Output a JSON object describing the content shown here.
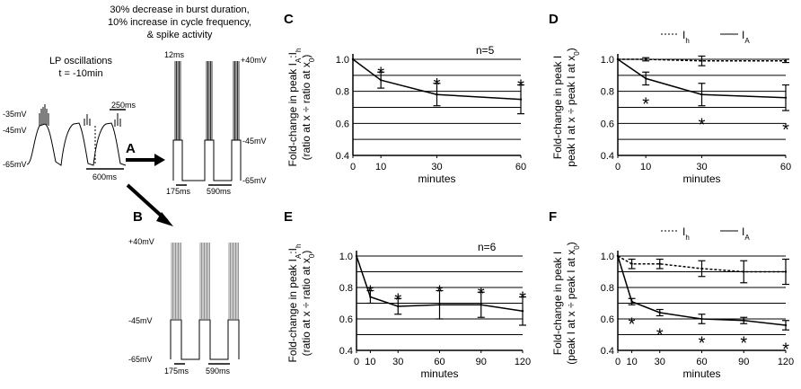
{
  "left": {
    "caption": [
      "30% decrease in burst duration,",
      "10% increase in cycle frequency,",
      "& spike activity"
    ],
    "lp_title": [
      "LP oscillations",
      "t = -10min"
    ],
    "lp_voltages": [
      "-35mV",
      "-45mV",
      "-65mV"
    ],
    "lp_scale": [
      "250ms",
      "600ms"
    ],
    "a_label": "A",
    "b_label": "B",
    "a_voltages": [
      "+40mV",
      "-45mV",
      "-65mV"
    ],
    "a_times": [
      "12ms",
      "175ms",
      "590ms"
    ],
    "b_voltages": [
      "+40mV",
      "-45mV",
      "-65mV"
    ],
    "b_times": [
      "175ms",
      "590ms"
    ]
  },
  "legend": {
    "ih": "I",
    "ih_sub": "h",
    "ia": "I",
    "ia_sub": "A"
  },
  "stars": "*",
  "chart_data": [
    {
      "panel": "C",
      "type": "line",
      "note": "n=5",
      "ylabel1": "Fold-change in peak I",
      "ylabel1_sub": "A",
      "ylabel1_mid": ":I",
      "ylabel1_sub2": "h",
      "ylabel2": "(ratio at x ÷ ratio at x",
      "ylabel2_sub": "0",
      "ylabel2_end": ")",
      "xlabel": "minutes",
      "x": [
        0,
        10,
        30,
        60
      ],
      "xticks": [
        "0",
        "10",
        "30",
        "60"
      ],
      "xlim": [
        0,
        60
      ],
      "ylim": [
        0.4,
        1.0
      ],
      "yticks": [
        "0.4",
        "0.6",
        "0.8",
        "1.0"
      ],
      "series": [
        {
          "name": "IA:Ih",
          "style": "solid",
          "values": [
            1.0,
            0.87,
            0.78,
            0.75
          ],
          "err": [
            0,
            0.05,
            0.07,
            0.09
          ],
          "stars": [
            false,
            true,
            true,
            true
          ],
          "star_pos": "above"
        }
      ]
    },
    {
      "panel": "D",
      "type": "line",
      "ylabel1": "Fold-change in peak I",
      "ylabel2": "peak I at x ÷ peak I at x",
      "ylabel2_sub": "0",
      "ylabel2_end": ")",
      "xlabel": "minutes",
      "x": [
        0,
        10,
        30,
        60
      ],
      "xticks": [
        "0",
        "10",
        "30",
        "60"
      ],
      "xlim": [
        0,
        60
      ],
      "ylim": [
        0.4,
        1.0
      ],
      "yticks": [
        "0.4",
        "0.6",
        "0.8",
        "1.0"
      ],
      "series": [
        {
          "name": "Ih",
          "style": "dashed",
          "values": [
            1.0,
            1.0,
            0.99,
            0.99
          ],
          "err": [
            0,
            0.01,
            0.03,
            0.01
          ],
          "stars": [
            false,
            false,
            false,
            false
          ],
          "star_pos": "below"
        },
        {
          "name": "IA",
          "style": "solid",
          "values": [
            1.0,
            0.88,
            0.78,
            0.76
          ],
          "err": [
            0,
            0.04,
            0.07,
            0.08
          ],
          "stars": [
            false,
            true,
            true,
            true
          ],
          "star_pos": "below"
        }
      ]
    },
    {
      "panel": "E",
      "type": "line",
      "note": "n=6",
      "ylabel1": "Fold-change in peak I",
      "ylabel1_sub": "A",
      "ylabel1_mid": ":I",
      "ylabel1_sub2": "h",
      "ylabel2": "(ratio at x ÷ ratio at x",
      "ylabel2_sub": "0",
      "ylabel2_end": ")",
      "xlabel": "minutes",
      "x": [
        0,
        10,
        30,
        60,
        90,
        120
      ],
      "xticks": [
        "0",
        "10",
        "30",
        "60",
        "90",
        "120"
      ],
      "xlim": [
        0,
        120
      ],
      "ylim": [
        0.4,
        1.0
      ],
      "yticks": [
        "0.4",
        "0.6",
        "0.8",
        "1.0"
      ],
      "series": [
        {
          "name": "IA:Ih",
          "style": "solid",
          "values": [
            1.0,
            0.74,
            0.68,
            0.69,
            0.69,
            0.65
          ],
          "err": [
            0,
            0.04,
            0.05,
            0.09,
            0.08,
            0.09
          ],
          "stars": [
            false,
            true,
            true,
            true,
            true,
            true
          ],
          "star_pos": "above"
        }
      ]
    },
    {
      "panel": "F",
      "type": "line",
      "ylabel1": "Fold-change in peak I",
      "ylabel2": "(peak I at x ÷ peak I at x",
      "ylabel2_sub": "0",
      "ylabel2_end": ")",
      "xlabel": "minutes",
      "x": [
        0,
        10,
        30,
        60,
        90,
        120
      ],
      "xticks": [
        "0",
        "10",
        "30",
        "60",
        "90",
        "120"
      ],
      "xlim": [
        0,
        120
      ],
      "ylim": [
        0.4,
        1.0
      ],
      "yticks": [
        "0.4",
        "0.6",
        "0.8",
        "1.0"
      ],
      "series": [
        {
          "name": "Ih",
          "style": "dashed",
          "values": [
            1.0,
            0.95,
            0.95,
            0.92,
            0.9,
            0.9
          ],
          "err": [
            0,
            0.03,
            0.03,
            0.05,
            0.07,
            0.08
          ],
          "stars": [
            false,
            false,
            false,
            false,
            false,
            false
          ],
          "star_pos": "below"
        },
        {
          "name": "IA",
          "style": "solid",
          "values": [
            1.0,
            0.71,
            0.64,
            0.6,
            0.59,
            0.56
          ],
          "err": [
            0,
            0.02,
            0.02,
            0.03,
            0.02,
            0.03
          ],
          "stars": [
            false,
            true,
            true,
            true,
            true,
            true
          ],
          "star_pos": "below"
        }
      ]
    }
  ]
}
